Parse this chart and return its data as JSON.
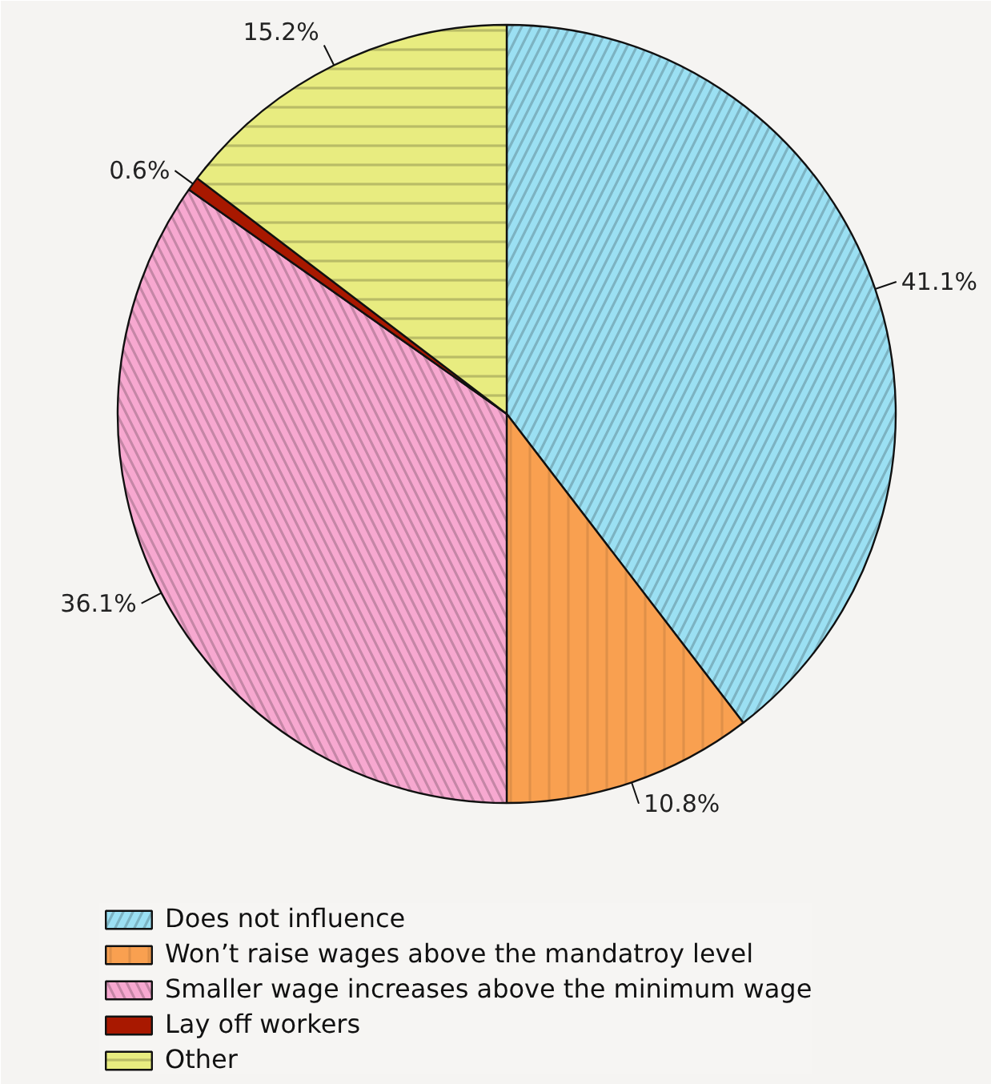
{
  "chart_data": {
    "type": "pie",
    "categories": [
      "Does not influence",
      "Won’t raise wages above the mandatroy level",
      "Smaller wage increases above the minimum wage",
      "Lay off workers",
      "Other"
    ],
    "values": [
      41.1,
      10.8,
      36.1,
      0.6,
      15.2
    ],
    "colors": [
      "#9be0f3",
      "#f9a050",
      "#f7a8d0",
      "#a81800",
      "#e8ec80"
    ],
    "value_labels": [
      "41.1%",
      "10.8%",
      "36.1%",
      "0.6%",
      "15.2%"
    ],
    "legend": "bottom"
  }
}
